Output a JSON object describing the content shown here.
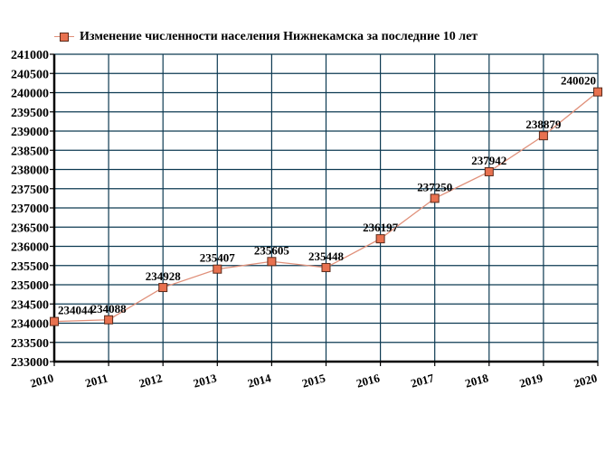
{
  "legend": {
    "label": "Изменение численности населения Нижнекамска за последние 10 лет"
  },
  "colors": {
    "line": "#e0907a",
    "marker_fill": "#e8714f",
    "marker_border": "#5a2a1a",
    "grid": "#0d3a52",
    "axis": "#000000"
  },
  "chart_data": {
    "type": "line",
    "title": "Изменение численности населения Нижнекамска за последние 10 лет",
    "xlabel": "",
    "ylabel": "",
    "x": [
      "2010",
      "2011",
      "2012",
      "2013",
      "2014",
      "2015",
      "2016",
      "2017",
      "2018",
      "2019",
      "2020"
    ],
    "series": [
      {
        "name": "Изменение численности населения Нижнекамска за последние 10 лет",
        "values": [
          234044,
          234088,
          234928,
          235407,
          235605,
          235448,
          236197,
          237250,
          237942,
          238879,
          240020
        ]
      }
    ],
    "data_labels": [
      "234044",
      "234088",
      "234928",
      "235407",
      "235605",
      "235448",
      "236197",
      "237250",
      "237942",
      "238879",
      "240020"
    ],
    "ylim": [
      233000,
      241000
    ],
    "yticks": [
      233000,
      233500,
      234000,
      234500,
      235000,
      235500,
      236000,
      236500,
      237000,
      237500,
      238000,
      238500,
      239000,
      239500,
      240000,
      240500,
      241000
    ],
    "grid": true,
    "legend_position": "top"
  }
}
